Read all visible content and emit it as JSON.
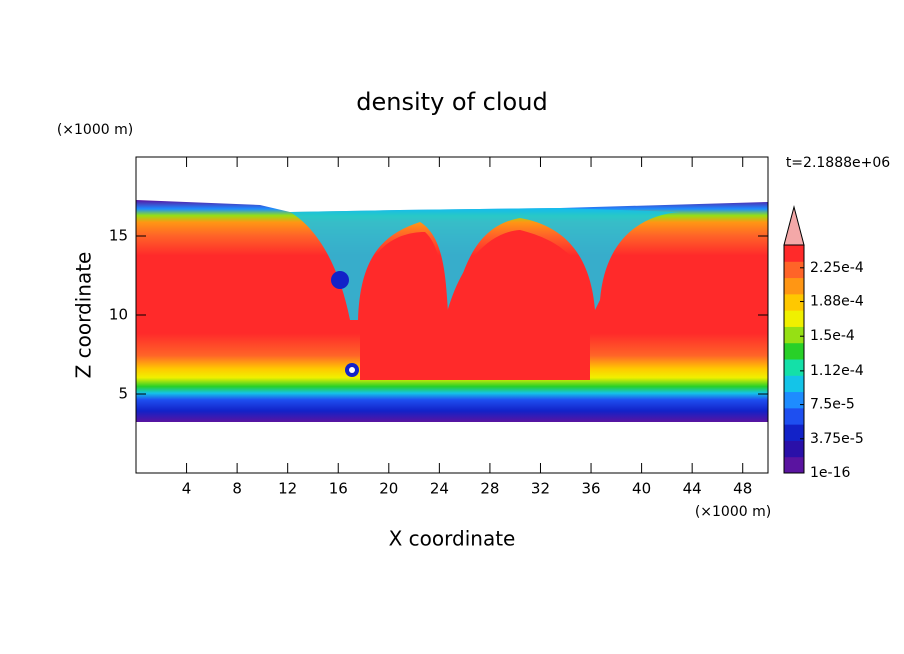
{
  "chart_data": {
    "type": "contour",
    "title": "density of cloud",
    "x_label": "X coordinate",
    "y_label": "Z coordinate",
    "x_unit": "(×1000 m)",
    "y_unit": "(×1000 m)",
    "annotation": "t=2.1888e+06",
    "xlim": [
      0,
      50
    ],
    "xticks": [
      4,
      8,
      12,
      16,
      20,
      24,
      28,
      32,
      36,
      40,
      44,
      48
    ],
    "ylim": [
      0,
      20
    ],
    "yticks": [
      5,
      10,
      15
    ],
    "colorbar": {
      "lim": [
        1e-16,
        0.00025
      ],
      "ticks": [
        {
          "value": 1e-16,
          "label": "1e-16"
        },
        {
          "value": 3.75e-05,
          "label": "3.75e-5"
        },
        {
          "value": 7.5e-05,
          "label": "7.5e-5"
        },
        {
          "value": 0.000112,
          "label": "1.12e-4"
        },
        {
          "value": 0.00015,
          "label": "1.5e-4"
        },
        {
          "value": 0.000188,
          "label": "1.88e-4"
        },
        {
          "value": 0.000225,
          "label": "2.25e-4"
        }
      ],
      "colors": [
        "#5a14a0",
        "#2a10a8",
        "#1222c8",
        "#1e4ff0",
        "#1e8cff",
        "#14c4e8",
        "#14e0a8",
        "#28d028",
        "#96e014",
        "#f0f000",
        "#ffc800",
        "#ff9614",
        "#ff6428",
        "#ff2a2a"
      ],
      "over_color": "#f4a8a8"
    }
  }
}
